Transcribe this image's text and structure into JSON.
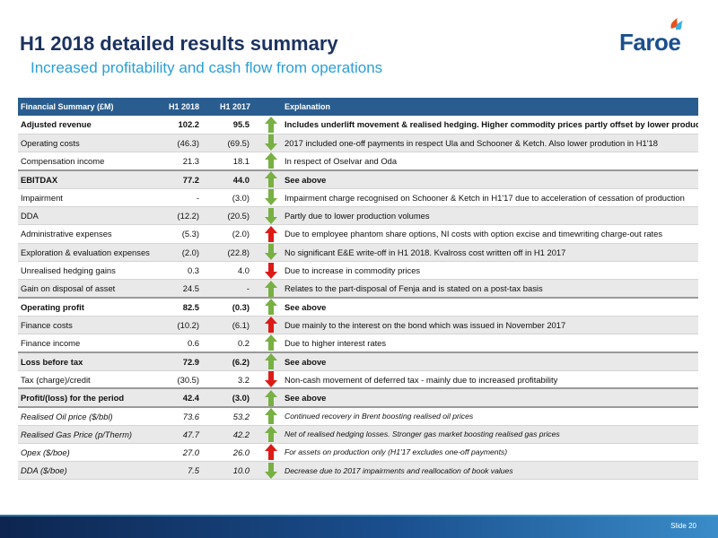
{
  "header": {
    "title": "H1 2018 detailed results summary",
    "subtitle": "Increased profitability and cash flow from operations",
    "logo_text": "Faroe"
  },
  "colors": {
    "title": "#1c3360",
    "subtitle": "#2a9fd6",
    "table_header": "#2a5d8f",
    "arrow_up": "#78b043",
    "arrow_down": "#dc1b17"
  },
  "table": {
    "columns": [
      "Financial Summary (£M)",
      "H1 2018",
      "H1 2017",
      "",
      "Explanation"
    ],
    "rows": [
      {
        "label": "Adjusted revenue",
        "h1_2018": "102.2",
        "h1_2017": "95.5",
        "arrow": "up-green",
        "explanation": "Includes underlift movement & realised hedging. Higher commodity prices partly offset by lower production"
      },
      {
        "label": "Operating costs",
        "h1_2018": "(46.3)",
        "h1_2017": "(69.5)",
        "arrow": "down-green",
        "explanation": "2017 included one-off payments in respect Ula and Schooner & Ketch. Also lower prodution in H1'18"
      },
      {
        "label": "Compensation income",
        "h1_2018": "21.3",
        "h1_2017": "18.1",
        "arrow": "up-green",
        "explanation": "In respect of Oselvar and Oda"
      },
      {
        "label": "EBITDAX",
        "h1_2018": "77.2",
        "h1_2017": "44.0",
        "arrow": "up-green",
        "explanation": "See above"
      },
      {
        "label": "Impairment",
        "h1_2018": "-",
        "h1_2017": "(3.0)",
        "arrow": "down-green",
        "explanation": "Impairment charge recognised on Schooner & Ketch in H1'17 due to acceleration of cessation of production"
      },
      {
        "label": "DDA",
        "h1_2018": "(12.2)",
        "h1_2017": "(20.5)",
        "arrow": "down-green",
        "explanation": "Partly due to lower production volumes"
      },
      {
        "label": "Administrative expenses",
        "h1_2018": "(5.3)",
        "h1_2017": "(2.0)",
        "arrow": "up-red",
        "explanation": "Due to employee phantom share options, NI costs with option excise and timewriting charge-out rates"
      },
      {
        "label": "Exploration & evaluation expenses",
        "h1_2018": "(2.0)",
        "h1_2017": "(22.8)",
        "arrow": "down-green",
        "explanation": "No significant E&E write-off in H1 2018. Kvalross cost written off in H1 2017"
      },
      {
        "label": "Unrealised hedging gains",
        "h1_2018": "0.3",
        "h1_2017": "4.0",
        "arrow": "down-red",
        "explanation": "Due to increase in commodity prices"
      },
      {
        "label": "Gain on disposal of asset",
        "h1_2018": "24.5",
        "h1_2017": "-",
        "arrow": "up-green",
        "explanation": "Relates to the part-disposal of Fenja and is stated on a post-tax basis"
      },
      {
        "label": "Operating profit",
        "h1_2018": "82.5",
        "h1_2017": "(0.3)",
        "arrow": "up-green",
        "explanation": "See above"
      },
      {
        "label": "Finance costs",
        "h1_2018": "(10.2)",
        "h1_2017": "(6.1)",
        "arrow": "up-red",
        "explanation": "Due mainly to the interest on the bond which was issued in November 2017"
      },
      {
        "label": "Finance income",
        "h1_2018": "0.6",
        "h1_2017": "0.2",
        "arrow": "up-green",
        "explanation": "Due to higher interest rates"
      },
      {
        "label": "Loss before tax",
        "h1_2018": "72.9",
        "h1_2017": "(6.2)",
        "arrow": "up-green",
        "explanation": "See above"
      },
      {
        "label": "Tax (charge)/credit",
        "h1_2018": "(30.5)",
        "h1_2017": "3.2",
        "arrow": "down-red",
        "explanation": "Non-cash movement of deferred tax - mainly due to increased profitability"
      },
      {
        "label": "Profit/(loss) for the period",
        "h1_2018": "42.4",
        "h1_2017": "(3.0)",
        "arrow": "up-green",
        "explanation": "See above"
      },
      {
        "label": "Realised Oil price ($/bbl)",
        "h1_2018": "73.6",
        "h1_2017": "53.2",
        "arrow": "up-green",
        "explanation": "Continued recovery in Brent boosting realised oil prices"
      },
      {
        "label": "Realised Gas Price (p/Therm)",
        "h1_2018": "47.7",
        "h1_2017": "42.2",
        "arrow": "up-green",
        "explanation": "Net of realised hedging losses. Stronger gas market boosting realised gas prices"
      },
      {
        "label": "Opex ($/boe)",
        "h1_2018": "27.0",
        "h1_2017": "26.0",
        "arrow": "up-red",
        "explanation": "For assets on production only (H1'17 excludes one-off payments)"
      },
      {
        "label": "DDA ($/boe)",
        "h1_2018": "7.5",
        "h1_2017": "10.0",
        "arrow": "down-green",
        "explanation": "Decrease due to 2017 impairments and reallocation of book values"
      }
    ]
  },
  "footer": {
    "slide_number": "Slide 20"
  }
}
